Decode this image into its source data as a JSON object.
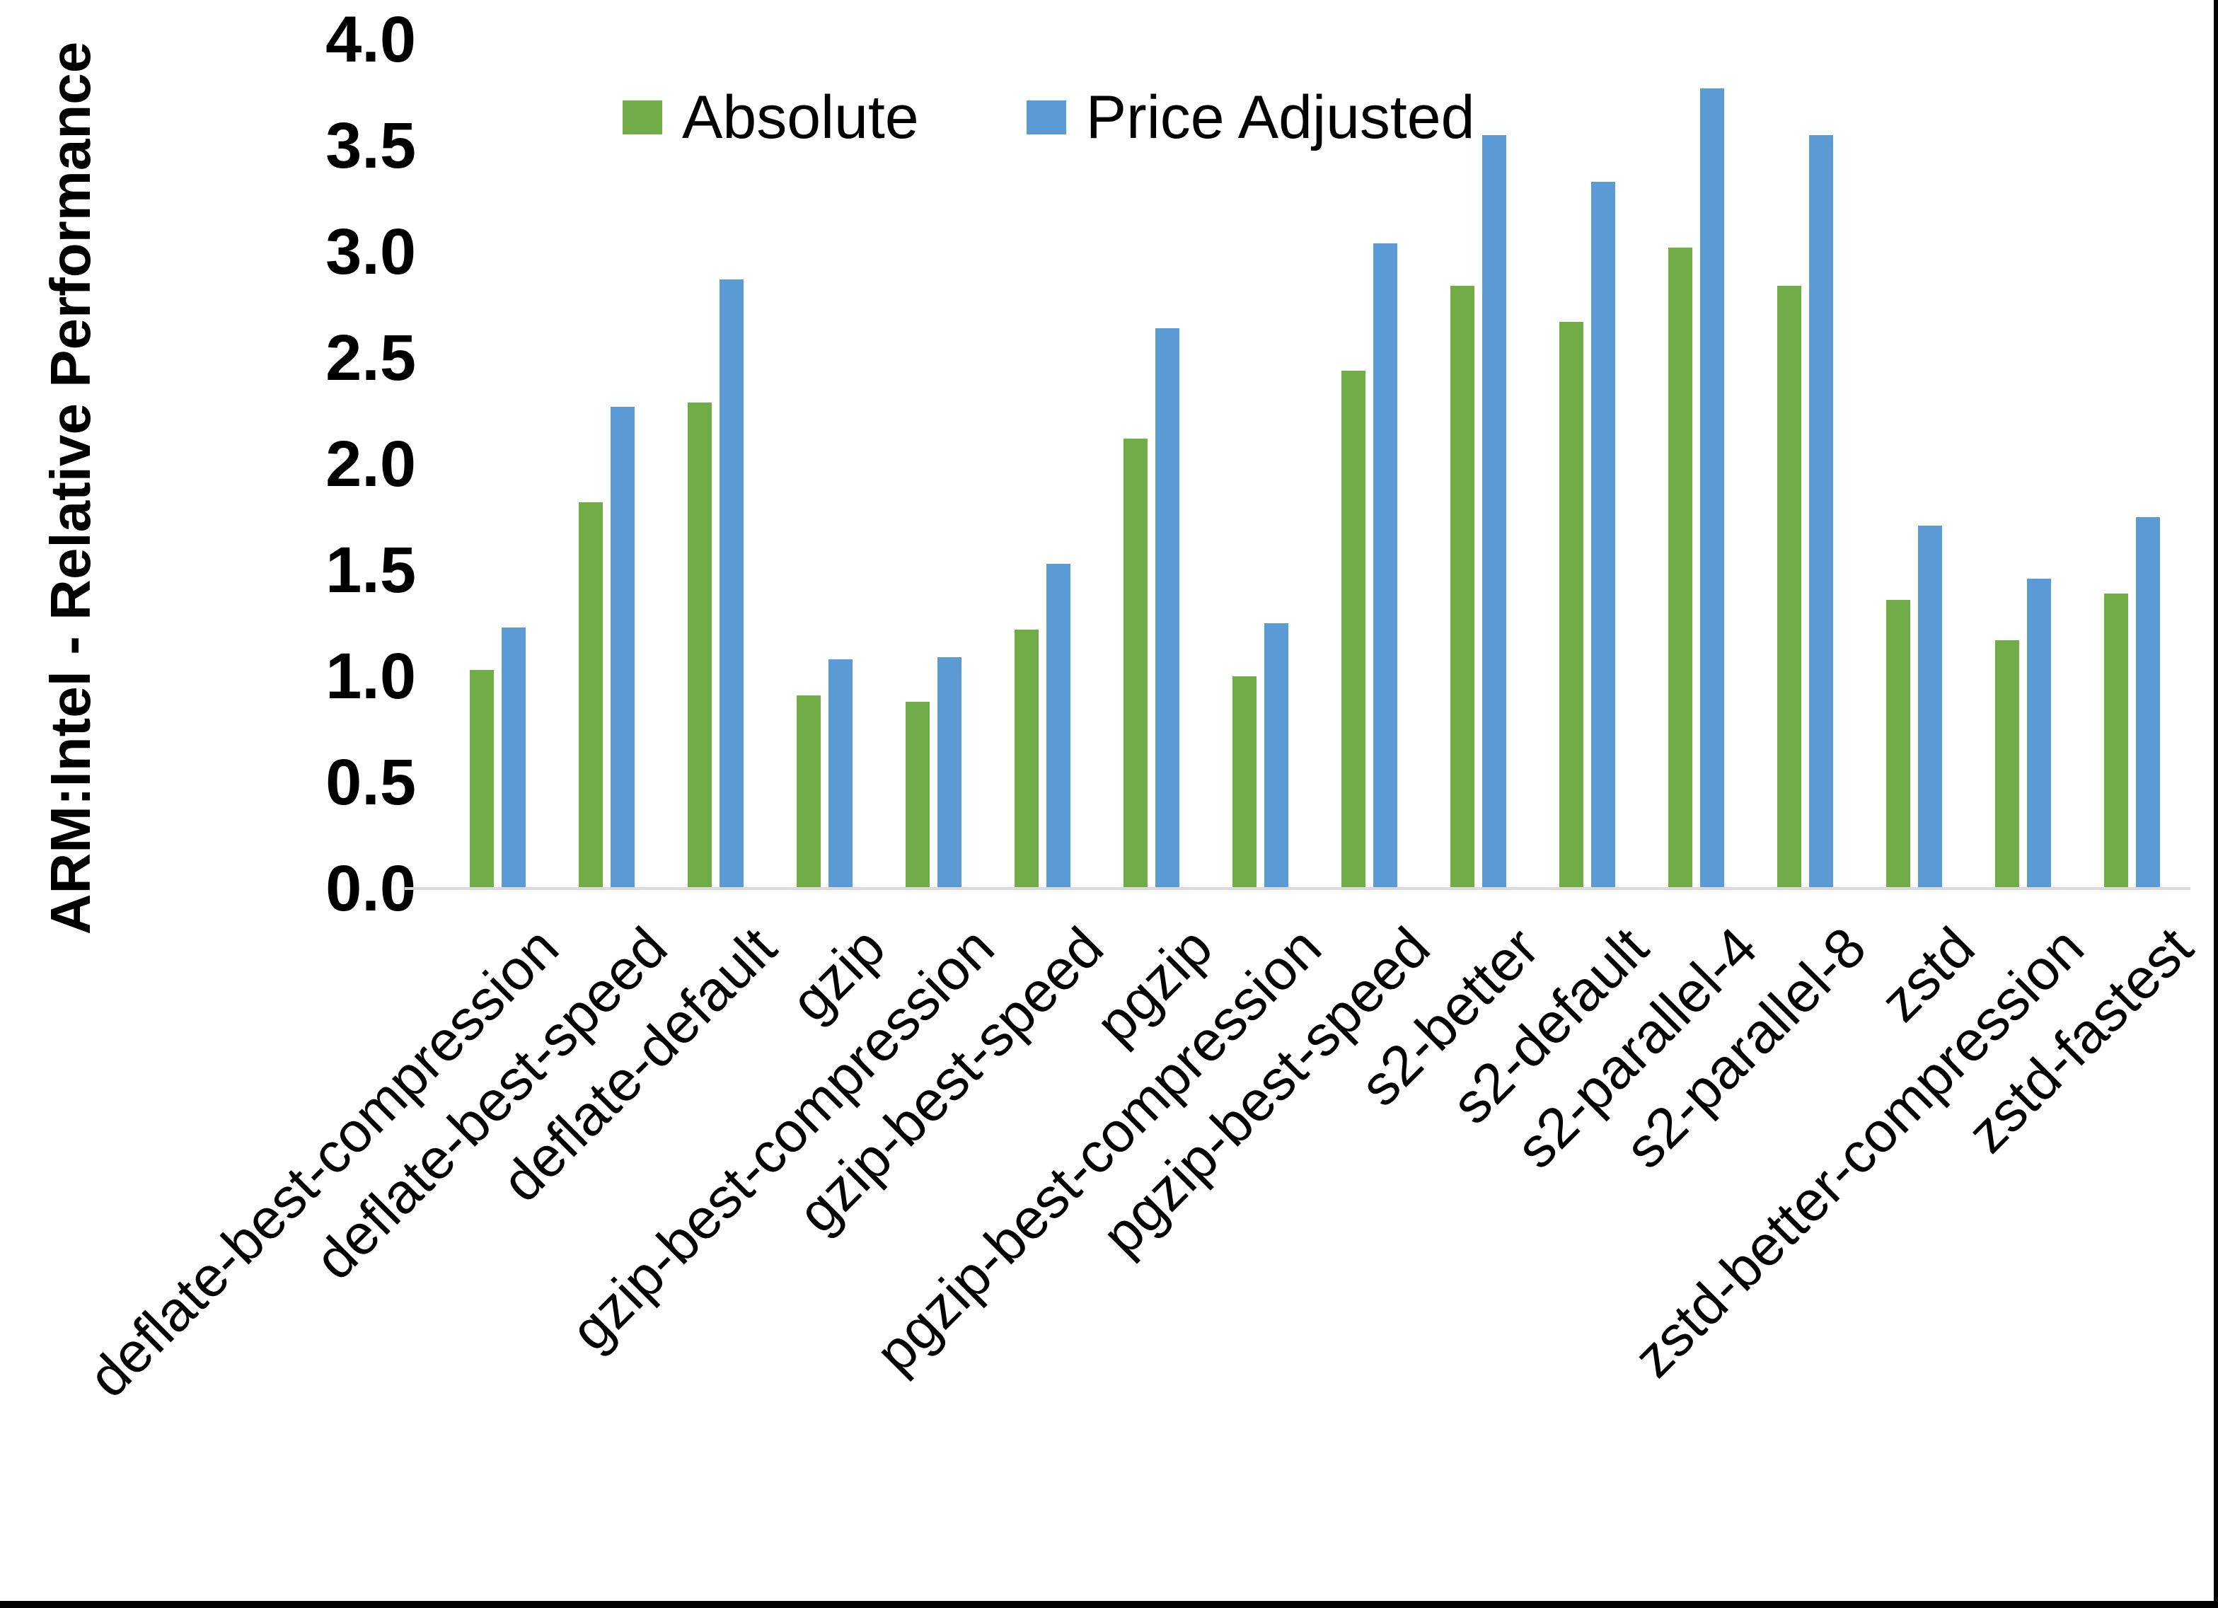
{
  "chart_data": {
    "type": "bar",
    "title": "",
    "ylabel": "ARM:Intel - Relative Performance",
    "xlabel": "",
    "ylim": [
      0,
      4.0
    ],
    "yticks": [
      4.0,
      3.5,
      3.0,
      2.5,
      2.0,
      1.5,
      1.0,
      0.5,
      0.0
    ],
    "grid": false,
    "legend_position": "top-center",
    "categories": [
      "deflate-best-compression",
      "deflate-best-speed",
      "deflate-default",
      "gzip",
      "gzip-best-compression",
      "gzip-best-speed",
      "pgzip",
      "pgzip-best-compression",
      "pgzip-best-speed",
      "s2-better",
      "s2-default",
      "s2-parallel-4",
      "s2-parallel-8",
      "zstd",
      "zstd-better-compression",
      "zstd-fastest"
    ],
    "series": [
      {
        "name": "Absolute",
        "color": "#70AD47",
        "values": [
          1.03,
          1.82,
          2.29,
          0.91,
          0.88,
          1.22,
          2.12,
          1.0,
          2.44,
          2.84,
          2.67,
          3.02,
          2.84,
          1.36,
          1.17,
          1.39
        ]
      },
      {
        "name": "Price Adjusted",
        "color": "#5B9BD5",
        "values": [
          1.23,
          2.27,
          2.87,
          1.08,
          1.09,
          1.53,
          2.64,
          1.25,
          3.04,
          3.55,
          3.33,
          3.77,
          3.55,
          1.71,
          1.46,
          1.75
        ]
      }
    ]
  },
  "colors": {
    "background": "#FFFFFF",
    "text": "#000000",
    "axis_line": "#D9D9D9",
    "frame_border": "#000000"
  }
}
